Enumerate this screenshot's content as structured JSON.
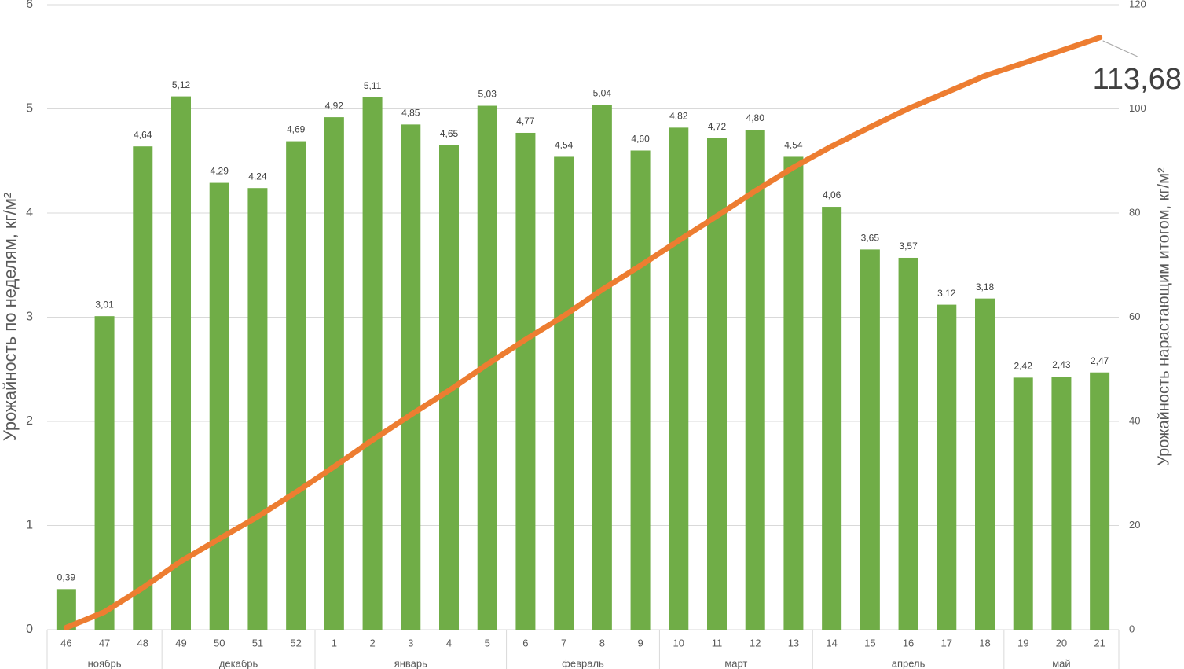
{
  "chart_data": {
    "type": "bar_line",
    "y_title": "Урожайность по неделям, кг/м²",
    "y2_title": "Урожайность нарастающим итогом, кг/м²",
    "categories": [
      "46",
      "47",
      "48",
      "49",
      "50",
      "51",
      "52",
      "1",
      "2",
      "3",
      "4",
      "5",
      "6",
      "7",
      "8",
      "9",
      "10",
      "11",
      "12",
      "13",
      "14",
      "15",
      "16",
      "17",
      "18",
      "19",
      "20",
      "21"
    ],
    "groups": [
      {
        "label": "ноябрь",
        "span": 3
      },
      {
        "label": "декабрь",
        "span": 4
      },
      {
        "label": "январь",
        "span": 5
      },
      {
        "label": "февраль",
        "span": 4
      },
      {
        "label": "март",
        "span": 4
      },
      {
        "label": "апрель",
        "span": 5
      },
      {
        "label": "май",
        "span": 3
      }
    ],
    "series": [
      {
        "type": "bar",
        "color": "#70ad47",
        "values": [
          0.39,
          3.01,
          4.64,
          5.12,
          4.29,
          4.24,
          4.69,
          4.92,
          5.11,
          4.85,
          4.65,
          5.03,
          4.77,
          4.54,
          5.04,
          4.6,
          4.82,
          4.72,
          4.8,
          4.54,
          4.06,
          3.65,
          3.57,
          3.12,
          3.18,
          2.42,
          2.43,
          2.47
        ],
        "value_labels": [
          "0,39",
          "3,01",
          "4,64",
          "5,12",
          "4,29",
          "4,24",
          "4,69",
          "4,92",
          "5,11",
          "4,85",
          "4,65",
          "5,03",
          "4,77",
          "4,54",
          "5,04",
          "4,60",
          "4,82",
          "4,72",
          "4,80",
          "4,54",
          "4,06",
          "3,65",
          "3,57",
          "3,12",
          "3,18",
          "2,42",
          "2,43",
          "2,47"
        ]
      },
      {
        "type": "line",
        "axis": "y2",
        "color": "#ed7d31",
        "values": [
          0.39,
          3.4,
          8.04,
          13.16,
          17.45,
          21.69,
          26.38,
          31.3,
          36.41,
          41.26,
          45.91,
          50.94,
          55.71,
          60.25,
          65.29,
          69.89,
          74.71,
          79.43,
          84.23,
          88.77,
          92.83,
          96.48,
          100.05,
          103.17,
          106.35,
          108.77,
          111.2,
          113.68
        ],
        "value_labels": [
          null,
          null,
          null,
          null,
          null,
          null,
          null,
          null,
          null,
          null,
          null,
          null,
          null,
          null,
          null,
          null,
          null,
          null,
          null,
          null,
          null,
          null,
          null,
          null,
          null,
          null,
          null,
          "113,68"
        ]
      }
    ],
    "ylim": [
      0,
      6
    ],
    "yticks": [
      0,
      1,
      2,
      3,
      4,
      5,
      6
    ],
    "y2lim": [
      0,
      120
    ],
    "y2ticks": [
      0,
      20,
      40,
      60,
      80,
      100,
      120
    ],
    "grid": true
  }
}
